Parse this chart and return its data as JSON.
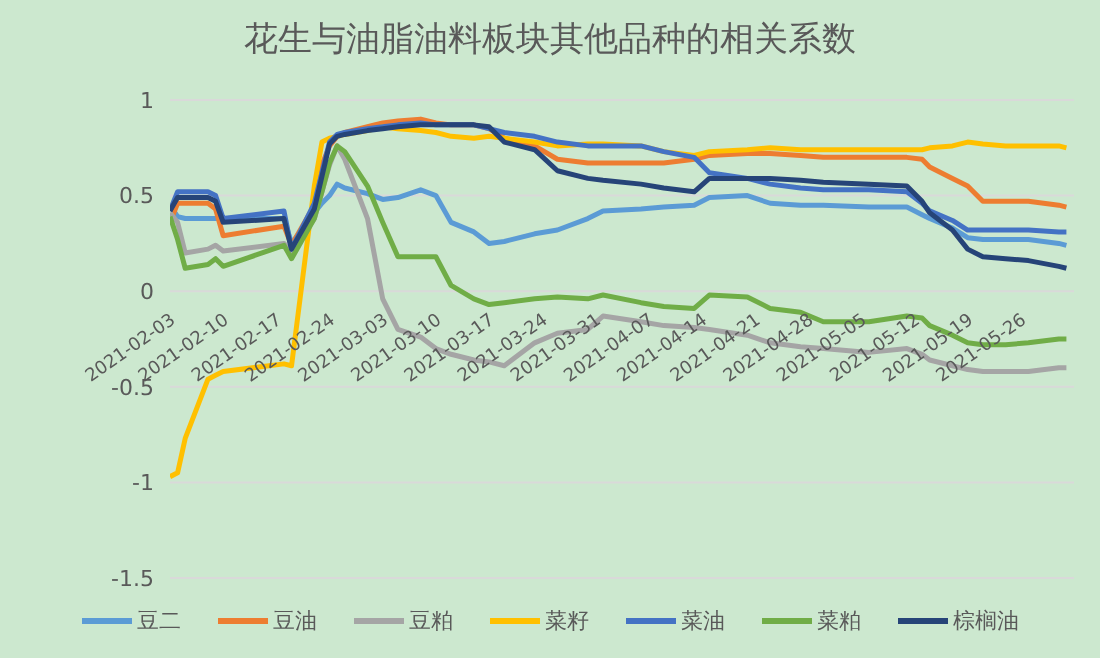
{
  "chart_data": {
    "type": "line",
    "title": "花生与油脂油料板块其他品种的相关系数",
    "x": [
      "2021-02-03",
      "2021-02-04",
      "2021-02-05",
      "2021-02-08",
      "2021-02-09",
      "2021-02-10",
      "2021-02-18",
      "2021-02-19",
      "2021-02-22",
      "2021-02-23",
      "2021-02-24",
      "2021-02-25",
      "2021-02-26",
      "2021-03-01",
      "2021-03-03",
      "2021-03-05",
      "2021-03-08",
      "2021-03-10",
      "2021-03-12",
      "2021-03-15",
      "2021-03-17",
      "2021-03-19",
      "2021-03-23",
      "2021-03-26",
      "2021-03-30",
      "2021-04-01",
      "2021-04-06",
      "2021-04-09",
      "2021-04-13",
      "2021-04-15",
      "2021-04-20",
      "2021-04-23",
      "2021-04-27",
      "2021-04-30",
      "2021-05-06",
      "2021-05-11",
      "2021-05-13",
      "2021-05-14",
      "2021-05-17",
      "2021-05-19",
      "2021-05-21",
      "2021-05-24",
      "2021-05-27",
      "2021-05-31",
      "2021-06-01"
    ],
    "series": [
      {
        "name": "豆二",
        "color": "#5b9bd5",
        "values": [
          0.45,
          0.39,
          0.38,
          0.38,
          0.38,
          0.38,
          0.38,
          0.25,
          0.41,
          0.46,
          0.5,
          0.56,
          0.54,
          0.51,
          0.48,
          0.49,
          0.53,
          0.5,
          0.36,
          0.31,
          0.25,
          0.26,
          0.3,
          0.32,
          0.38,
          0.42,
          0.43,
          0.44,
          0.45,
          0.49,
          0.5,
          0.46,
          0.45,
          0.45,
          0.44,
          0.44,
          0.4,
          0.38,
          0.33,
          0.28,
          0.27,
          0.27,
          0.27,
          0.25,
          0.24
        ]
      },
      {
        "name": "豆油",
        "color": "#ed7d31",
        "values": [
          0.36,
          0.46,
          0.46,
          0.46,
          0.43,
          0.29,
          0.34,
          0.24,
          0.45,
          0.66,
          0.76,
          0.81,
          0.83,
          0.86,
          0.88,
          0.89,
          0.9,
          0.88,
          0.87,
          0.87,
          0.85,
          0.8,
          0.76,
          0.69,
          0.67,
          0.67,
          0.67,
          0.67,
          0.69,
          0.71,
          0.72,
          0.72,
          0.71,
          0.7,
          0.7,
          0.7,
          0.69,
          0.65,
          0.59,
          0.55,
          0.47,
          0.47,
          0.47,
          0.45,
          0.44
        ]
      },
      {
        "name": "豆粕",
        "color": "#a5a5a5",
        "values": [
          0.41,
          0.36,
          0.2,
          0.22,
          0.24,
          0.21,
          0.25,
          0.2,
          0.38,
          0.52,
          0.66,
          0.76,
          0.69,
          0.38,
          -0.04,
          -0.2,
          -0.24,
          -0.3,
          -0.33,
          -0.36,
          -0.37,
          -0.39,
          -0.27,
          -0.22,
          -0.2,
          -0.13,
          -0.16,
          -0.18,
          -0.19,
          -0.2,
          -0.23,
          -0.27,
          -0.29,
          -0.3,
          -0.32,
          -0.3,
          -0.33,
          -0.36,
          -0.39,
          -0.41,
          -0.42,
          -0.42,
          -0.42,
          -0.4,
          -0.4
        ]
      },
      {
        "name": "菜籽",
        "color": "#ffc000",
        "values": [
          -0.97,
          -0.95,
          -0.77,
          -0.46,
          -0.44,
          -0.42,
          -0.38,
          -0.39,
          0.55,
          0.78,
          0.8,
          0.81,
          0.82,
          0.84,
          0.86,
          0.85,
          0.84,
          0.83,
          0.81,
          0.8,
          0.81,
          0.8,
          0.78,
          0.76,
          0.77,
          0.77,
          0.76,
          0.73,
          0.71,
          0.73,
          0.74,
          0.75,
          0.74,
          0.74,
          0.74,
          0.74,
          0.74,
          0.75,
          0.76,
          0.78,
          0.77,
          0.76,
          0.76,
          0.76,
          0.75
        ]
      },
      {
        "name": "菜油",
        "color": "#4472c4",
        "values": [
          0.42,
          0.52,
          0.52,
          0.52,
          0.5,
          0.38,
          0.42,
          0.22,
          0.46,
          0.62,
          0.78,
          0.82,
          0.83,
          0.85,
          0.86,
          0.87,
          0.88,
          0.87,
          0.87,
          0.87,
          0.85,
          0.83,
          0.81,
          0.78,
          0.76,
          0.76,
          0.76,
          0.73,
          0.7,
          0.62,
          0.59,
          0.56,
          0.54,
          0.53,
          0.53,
          0.52,
          0.46,
          0.42,
          0.37,
          0.32,
          0.32,
          0.32,
          0.32,
          0.31,
          0.31
        ]
      },
      {
        "name": "菜粕",
        "color": "#70ad47",
        "values": [
          0.39,
          0.27,
          0.12,
          0.14,
          0.17,
          0.13,
          0.24,
          0.17,
          0.38,
          0.52,
          0.67,
          0.76,
          0.73,
          0.55,
          0.36,
          0.18,
          0.18,
          0.18,
          0.03,
          -0.04,
          -0.07,
          -0.06,
          -0.04,
          -0.03,
          -0.04,
          -0.02,
          -0.06,
          -0.08,
          -0.09,
          -0.02,
          -0.03,
          -0.09,
          -0.11,
          -0.16,
          -0.16,
          -0.13,
          -0.14,
          -0.18,
          -0.23,
          -0.27,
          -0.28,
          -0.28,
          -0.27,
          -0.25,
          -0.25
        ]
      },
      {
        "name": "棕榈油",
        "color": "#264478",
        "values": [
          0.42,
          0.49,
          0.49,
          0.49,
          0.47,
          0.36,
          0.38,
          0.22,
          0.43,
          0.6,
          0.77,
          0.81,
          0.82,
          0.84,
          0.85,
          0.86,
          0.87,
          0.87,
          0.87,
          0.87,
          0.86,
          0.78,
          0.74,
          0.63,
          0.59,
          0.58,
          0.56,
          0.54,
          0.52,
          0.59,
          0.59,
          0.59,
          0.58,
          0.57,
          0.56,
          0.55,
          0.47,
          0.41,
          0.32,
          0.22,
          0.18,
          0.17,
          0.16,
          0.13,
          0.12
        ]
      }
    ],
    "xlim": [
      "2021-02-03",
      "2021-06-02"
    ],
    "xticks": [
      "2021-02-03",
      "2021-02-10",
      "2021-02-17",
      "2021-02-24",
      "2021-03-03",
      "2021-03-10",
      "2021-03-17",
      "2021-03-24",
      "2021-03-31",
      "2021-04-07",
      "2021-04-14",
      "2021-04-21",
      "2021-04-28",
      "2021-05-05",
      "2021-05-12",
      "2021-05-19",
      "2021-05-26"
    ],
    "ylim": [
      -1.5,
      1
    ],
    "yticks": [
      -1.5,
      -1,
      -0.5,
      0,
      0.5,
      1
    ],
    "grid": "y",
    "legend": "bottom",
    "marker": "none",
    "line_style": "solid"
  }
}
